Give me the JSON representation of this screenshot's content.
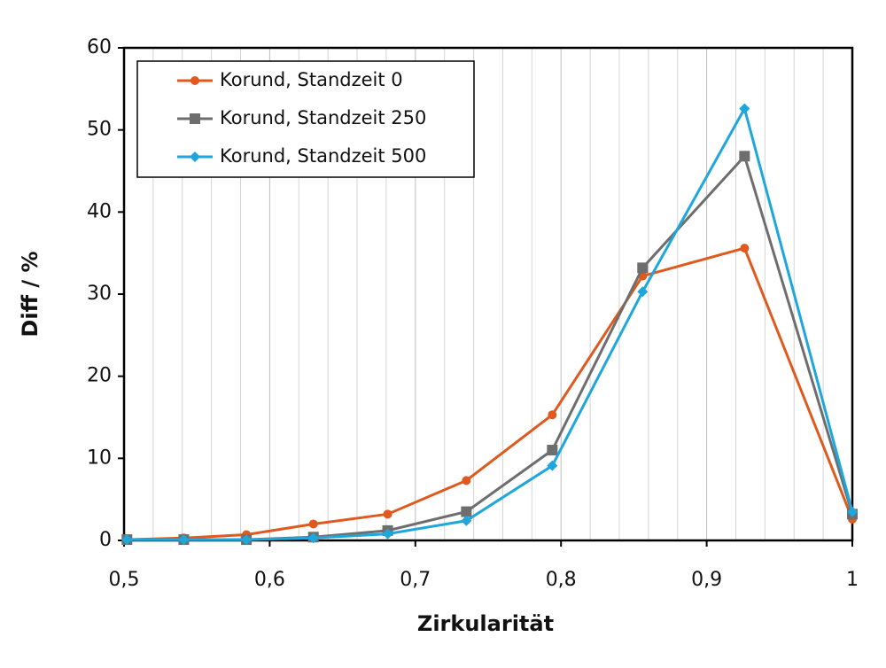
{
  "chart_data": {
    "type": "line",
    "xlabel": "Zirkularität",
    "ylabel": "Diff / %",
    "x": [
      0.502,
      0.541,
      0.584,
      0.63,
      0.681,
      0.735,
      0.794,
      0.856,
      0.926,
      1.0
    ],
    "series": [
      {
        "name": "Korund, Standzeit 0",
        "color": "#e0591e",
        "marker": "circle",
        "values": [
          0.1,
          0.3,
          0.7,
          2.0,
          3.2,
          7.3,
          15.3,
          32.2,
          35.6,
          2.6
        ]
      },
      {
        "name": "Korund, Standzeit 250",
        "color": "#6e6e6e",
        "marker": "square",
        "values": [
          0.1,
          0.1,
          0.1,
          0.4,
          1.2,
          3.5,
          11.0,
          33.2,
          46.8,
          3.2
        ]
      },
      {
        "name": "Korund, Standzeit 500",
        "color": "#1ea7dc",
        "marker": "diamond",
        "values": [
          0.1,
          0.1,
          0.1,
          0.3,
          0.8,
          2.4,
          9.1,
          30.3,
          52.6,
          3.5
        ]
      }
    ],
    "xlim": [
      0.5,
      1.0
    ],
    "ylim": [
      0,
      60
    ],
    "xticks": [
      {
        "value": 0.5,
        "label": "0,5"
      },
      {
        "value": 0.6,
        "label": "0,6"
      },
      {
        "value": 0.7,
        "label": "0,7"
      },
      {
        "value": 0.8,
        "label": "0,8"
      },
      {
        "value": 0.9,
        "label": "0,9"
      },
      1
    ],
    "xminorticks": [
      0.52,
      0.54,
      0.56,
      0.58,
      0.62,
      0.64,
      0.66,
      0.68,
      0.72,
      0.74,
      0.76,
      0.78,
      0.82,
      0.84,
      0.86,
      0.88,
      0.92,
      0.94,
      0.96,
      0.98
    ],
    "yticks": [
      0,
      10,
      20,
      30,
      40,
      50,
      60
    ],
    "grid": "x",
    "legend": "upper left"
  }
}
